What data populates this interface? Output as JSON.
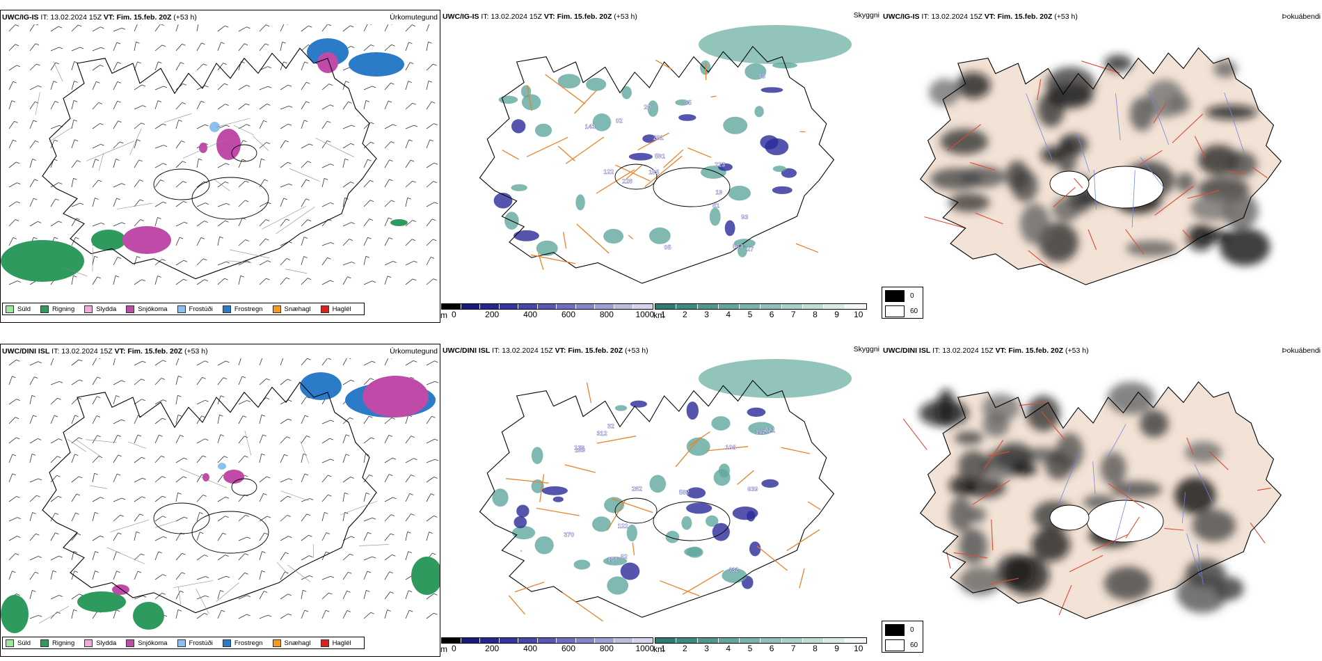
{
  "rows": [
    {
      "model": "UWC/IG-IS",
      "it_label": "IT:",
      "it_value": "13.02.2024 15Z",
      "vt_label": "VT:",
      "vt_value": "Fim. 15.feb. 20Z",
      "lead": "(+53 h)"
    },
    {
      "model": "UWC/DINI ISL",
      "it_label": "IT:",
      "it_value": "13.02.2024 15Z",
      "vt_label": "VT:",
      "vt_value": "Fim. 15.feb. 20Z",
      "lead": "(+53 h)"
    }
  ],
  "titles": {
    "precip": "Úrkomutegund",
    "visibility": "Skyggni",
    "fog": "Þokuábendi"
  },
  "precip_legend": [
    {
      "label": "Súld",
      "color": "#9be89b"
    },
    {
      "label": "Rigning",
      "color": "#2e9a5e"
    },
    {
      "label": "Slydda",
      "color": "#f2a8d8"
    },
    {
      "label": "Snjókoma",
      "color": "#c04aa8"
    },
    {
      "label": "Frostúði",
      "color": "#8cc0f0"
    },
    {
      "label": "Frostregn",
      "color": "#2c7bc8"
    },
    {
      "label": "Snæhagl",
      "color": "#f49a1e"
    },
    {
      "label": "Haglél",
      "color": "#e0201a"
    }
  ],
  "visibility_scale_m": {
    "unit": "m",
    "ticks": [
      "0",
      "200",
      "400",
      "600",
      "800",
      "1000"
    ],
    "colors": [
      "#000000",
      "#1a1a78",
      "#262690",
      "#3535a0",
      "#4646aa",
      "#5858b4",
      "#6e6ebe",
      "#8585c8",
      "#a0a0d4",
      "#bcbce0",
      "#d4d4ec"
    ]
  },
  "visibility_scale_km": {
    "unit": "km",
    "ticks": [
      "1",
      "2",
      "3",
      "4",
      "5",
      "6",
      "7",
      "8",
      "9",
      "10"
    ],
    "colors": [
      "#2f7c72",
      "#3f8a80",
      "#4f988e",
      "#62a69c",
      "#78b4aa",
      "#8ec2b8",
      "#a6d0c8",
      "#c0ded8",
      "#d8ece8",
      "#f2f8f6"
    ]
  },
  "fog_key": {
    "values": [
      "0",
      "60"
    ],
    "colors": [
      "#000000",
      "#ffffff"
    ]
  },
  "visibility_labels": [
    [
      "281",
      "27",
      "19",
      "05",
      "213",
      "195",
      "226",
      "591",
      "564",
      "122",
      "20",
      "143",
      "85",
      "88",
      "93",
      "81",
      "02"
    ],
    [
      "312",
      "639",
      "262",
      "432",
      "370",
      "169",
      "582",
      "108",
      "122",
      "142",
      "108",
      "32",
      "139",
      "021",
      "82"
    ]
  ],
  "colors": {
    "coast": "#000000",
    "roads_orange": "#e8822a",
    "roads_red": "#e04a30",
    "rivers": "#6e86e8",
    "land_fog": "#f3e3d6",
    "wind_barb": "#333333"
  }
}
